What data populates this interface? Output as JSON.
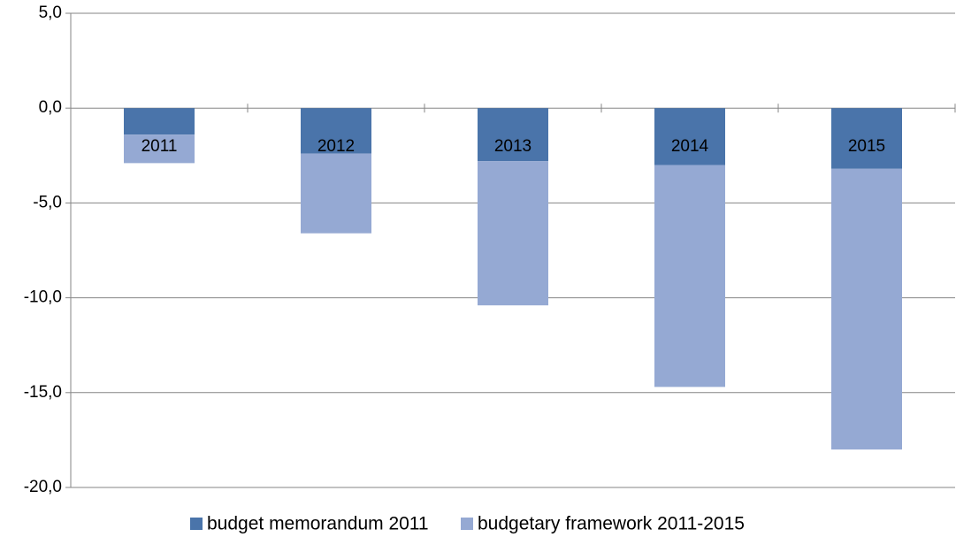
{
  "chart_data": {
    "type": "stacked-bar",
    "categories": [
      "2011",
      "2012",
      "2013",
      "2014",
      "2015"
    ],
    "series": [
      {
        "name": "budget memorandum 2011",
        "color": "#4a74aa",
        "values": [
          -1.4,
          -2.4,
          -2.8,
          -3.0,
          -3.2
        ]
      },
      {
        "name": "budgetary framework 2011-2015",
        "color": "#95a9d3",
        "values": [
          -1.5,
          -4.2,
          -7.6,
          -11.7,
          -14.8
        ]
      }
    ],
    "ylim": [
      -20,
      5
    ],
    "yticks": [
      {
        "value": -20,
        "label": "-20,0"
      },
      {
        "value": -15,
        "label": "-15,0"
      },
      {
        "value": -10,
        "label": "-10,0"
      },
      {
        "value": -5,
        "label": "-5,0"
      },
      {
        "value": 0,
        "label": "0,0"
      },
      {
        "value": 5,
        "label": "5,0"
      }
    ],
    "grid": true
  }
}
